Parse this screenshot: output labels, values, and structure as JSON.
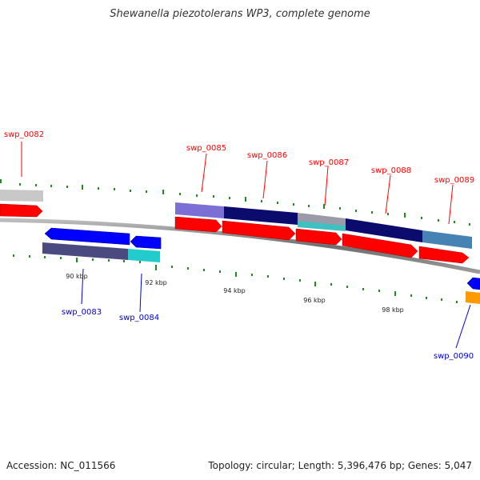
{
  "title": "Shewanella piezotolerans WP3, complete genome",
  "footer": {
    "accession": "Accession: NC_011566",
    "stats": "Topology: circular; Length: 5,396,476 bp; Genes: 5,047"
  },
  "ticks": [
    "90 kbp",
    "92 kbp",
    "94 kbp",
    "96 kbp",
    "98 kbp"
  ],
  "genes_top": [
    "swp_0082",
    "swp_0085",
    "swp_0086",
    "swp_0087",
    "swp_0088",
    "swp_0089"
  ],
  "genes_bottom": [
    "swp_0083",
    "swp_0084",
    "swp_0090"
  ],
  "colors": {
    "forward_gene": "#ff0000",
    "reverse_gene": "#0000ff",
    "cyan_gene": "#22cccc",
    "orange_gene": "#ff9900",
    "backbone": "#808080",
    "tick_green": "#228b22",
    "cog_purple": "#7b6fd6",
    "cog_navy": "#0b0b6e",
    "cog_gray": "#9a9aa8",
    "cog_steel": "#4682b4",
    "cog_light_gray": "#c8c8c8",
    "cog_dark_slate": "#4a4a80",
    "cog_teal": "#40c0c0"
  }
}
